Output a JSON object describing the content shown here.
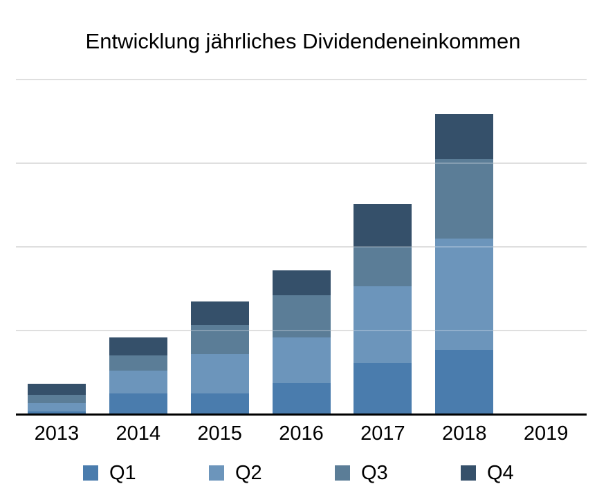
{
  "page": {
    "background_color": "#ffffff",
    "text_color": "#000000",
    "axis_line_color": "#000000",
    "gridline_color": "#d4d4d4"
  },
  "chart_data": {
    "type": "bar",
    "stacked": true,
    "title": "Entwicklung jährliches Dividendeneinkommen",
    "xlabel": "",
    "ylabel": "",
    "categories": [
      "2013",
      "2014",
      "2015",
      "2016",
      "2017",
      "2018",
      "2019"
    ],
    "series": [
      {
        "name": "Q1",
        "color": "#4A7CAD",
        "values": [
          0.03,
          0.25,
          0.25,
          0.37,
          0.61,
          0.77,
          0
        ]
      },
      {
        "name": "Q2",
        "color": "#6C95BB",
        "values": [
          0.1,
          0.27,
          0.47,
          0.55,
          0.92,
          1.33,
          0
        ]
      },
      {
        "name": "Q3",
        "color": "#5B7D97",
        "values": [
          0.1,
          0.18,
          0.35,
          0.5,
          0.47,
          0.95,
          0
        ]
      },
      {
        "name": "Q4",
        "color": "#35506A",
        "values": [
          0.13,
          0.22,
          0.28,
          0.3,
          0.51,
          0.54,
          0
        ]
      }
    ],
    "y_axis": {
      "tick_labels_visible": false,
      "value_unit": "gridline-intervals (y-axis unlabeled)",
      "ylim": [
        0,
        4
      ],
      "gridline_units": [
        1,
        2,
        3,
        4
      ]
    },
    "grid": "horizontal",
    "legend_position": "bottom"
  }
}
